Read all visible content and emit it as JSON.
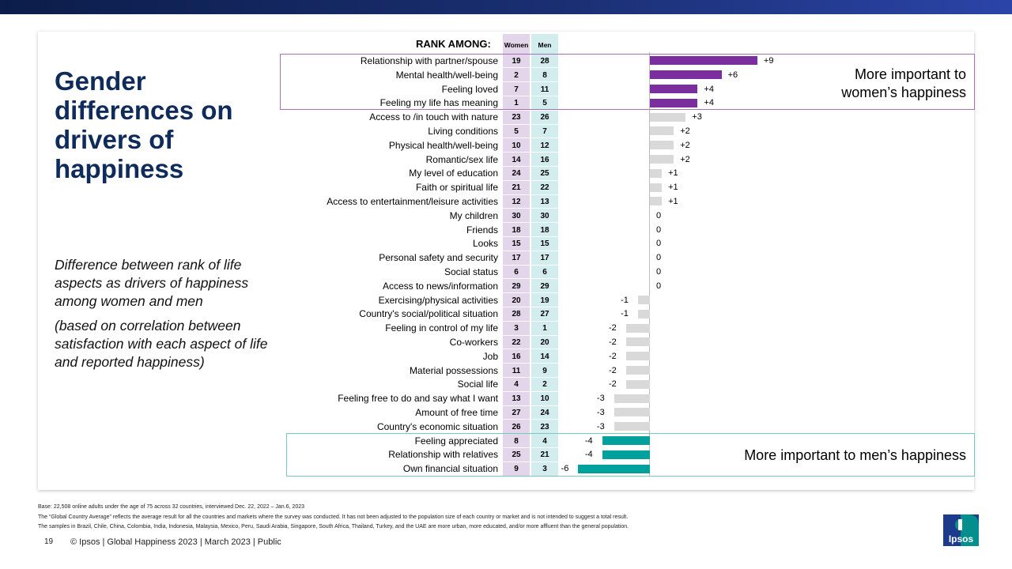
{
  "title": "Gender differences on drivers of happiness",
  "subtitle": "Difference between rank of life aspects as drivers of happiness among women and men",
  "subtitle_note": "(based on correlation between satisfaction with each aspect of life and reported happiness)",
  "rank_header": "RANK AMONG:",
  "col_women": "Women",
  "col_men": "Men",
  "callout_women": "More important to women’s happiness",
  "callout_men": "More important to men’s happiness",
  "colors": {
    "women_highlight": "#7b2f9e",
    "men_highlight": "#00a09d",
    "neutral": "#d9d9d9",
    "title": "#0f2b5b"
  },
  "chart_data": {
    "type": "bar",
    "orientation": "horizontal",
    "series_name": "Rank difference (men rank minus women rank)",
    "categories": [
      "Relationship with partner/spouse",
      "Mental health/well-being",
      "Feeling loved",
      "Feeling my life has meaning",
      "Access to /in touch with nature",
      "Living conditions",
      "Physical health/well-being",
      "Romantic/sex life",
      "My level of education",
      "Faith or spiritual life",
      "Access to entertainment/leisure activities",
      "My children",
      "Friends",
      "Looks",
      "Personal safety and security",
      "Social status",
      "Access to news/information",
      "Exercising/physical activities",
      "Country's social/political situation",
      "Feeling in control of my life",
      "Co-workers",
      "Job",
      "Material possessions",
      "Social life",
      "Feeling free to do and say what I want",
      "Amount of free time",
      "Country's economic situation",
      "Feeling appreciated",
      "Relationship with relatives",
      "Own financial situation"
    ],
    "women_rank": [
      19,
      2,
      7,
      1,
      23,
      5,
      10,
      14,
      24,
      21,
      12,
      30,
      18,
      15,
      17,
      6,
      29,
      20,
      28,
      3,
      22,
      16,
      11,
      4,
      13,
      27,
      26,
      8,
      25,
      9
    ],
    "men_rank": [
      28,
      8,
      11,
      5,
      26,
      7,
      12,
      16,
      25,
      22,
      13,
      30,
      18,
      15,
      17,
      6,
      29,
      19,
      27,
      1,
      20,
      14,
      9,
      2,
      10,
      24,
      23,
      4,
      21,
      3
    ],
    "values": [
      9,
      6,
      4,
      4,
      3,
      2,
      2,
      2,
      1,
      1,
      1,
      0,
      0,
      0,
      0,
      0,
      0,
      -1,
      -1,
      -2,
      -2,
      -2,
      -2,
      -2,
      -3,
      -3,
      -3,
      -4,
      -4,
      -6
    ],
    "value_labels": [
      "+9",
      "+6",
      "+4",
      "+4",
      "+3",
      "+2",
      "+2",
      "+2",
      "+1",
      "+1",
      "+1",
      "0",
      "0",
      "0",
      "0",
      "0",
      "0",
      "-1",
      "-1",
      "-2",
      "-2",
      "-2",
      "-2",
      "-2",
      "-3",
      "-3",
      "-3",
      "-4",
      "-4",
      "-6"
    ],
    "highlight_women": [
      0,
      1,
      2,
      3
    ],
    "highlight_men": [
      27,
      28,
      29
    ]
  },
  "footnotes": [
    "Base: 22,508 online adults under the age of 75 across 32 countries, interviewed Dec. 22, 2022 – Jan.6, 2023",
    "The “Global Country Average” reflects the average result for all the countries and markets where the survey was conducted. It has not been adjusted to the population size of each country or market and is not intended to suggest a total result.",
    "The samples in Brazil, Chile, China, Colombia, India, Indonesia, Malaysia, Mexico, Peru, Saudi Arabia, Singapore, South Africa, Thailand, Turkey, and the UAE are more urban, more educated, and/or more affluent than the general population."
  ],
  "page_number": "19",
  "footer_text": "© Ipsos | Global Happiness 2023 | March 2023 | Public",
  "logo_text": "Ipsos"
}
